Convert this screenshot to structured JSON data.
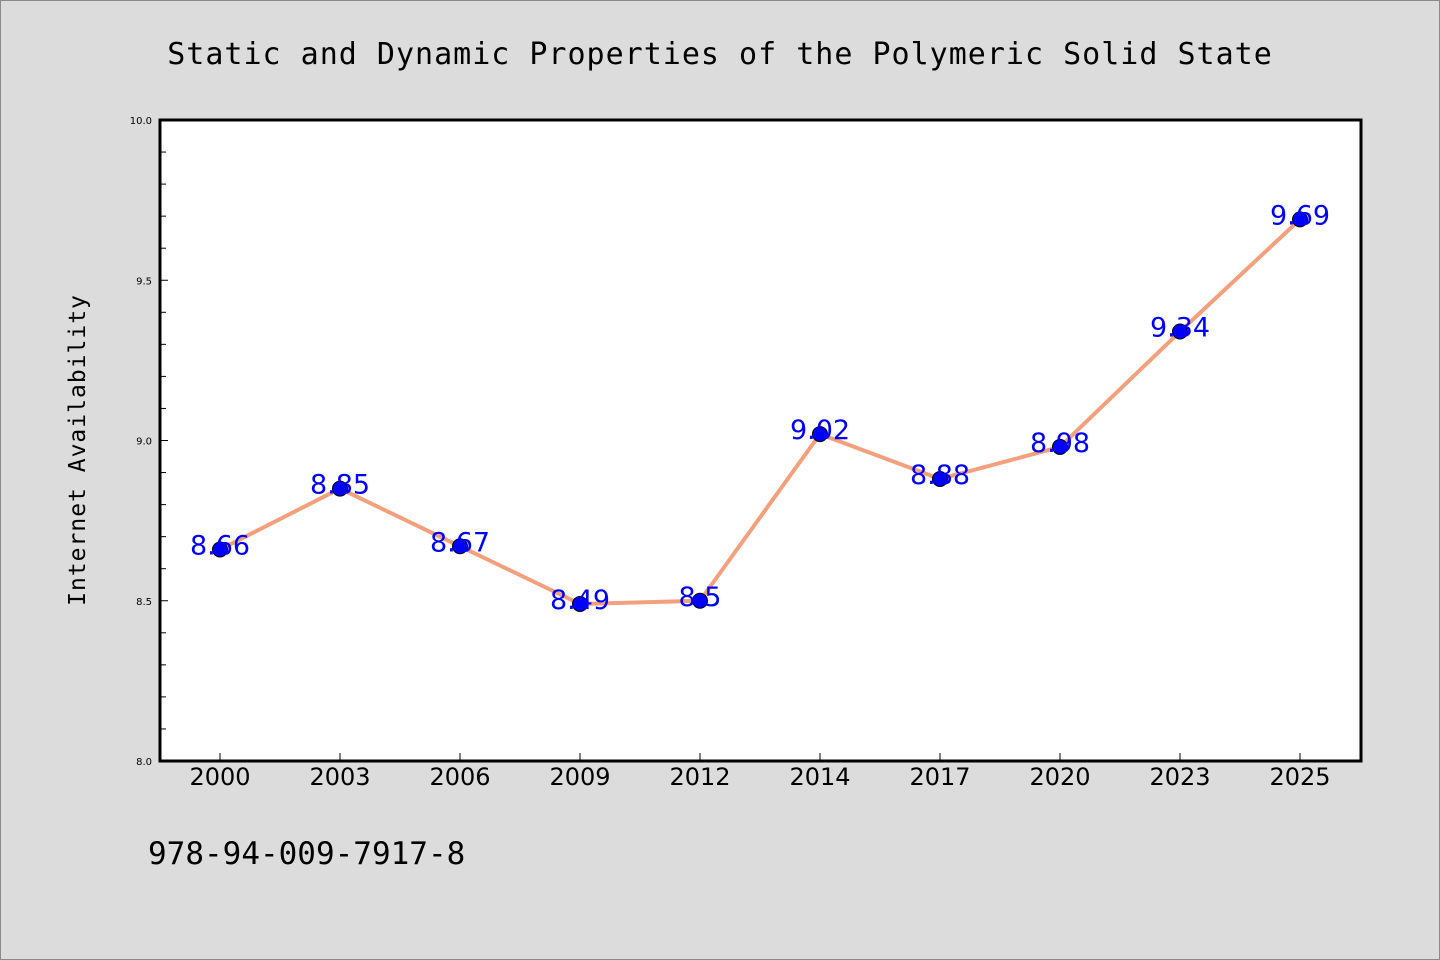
{
  "chart_data": {
    "type": "line",
    "title": "Static and Dynamic Properties of the Polymeric Solid State",
    "xlabel": "",
    "ylabel": "Internet Availability",
    "categories": [
      "2000",
      "2003",
      "2006",
      "2009",
      "2012",
      "2014",
      "2017",
      "2020",
      "2023",
      "2025"
    ],
    "series": [
      {
        "values": [
          8.66,
          8.85,
          8.67,
          8.49,
          8.5,
          9.02,
          8.88,
          8.98,
          9.34,
          9.69
        ]
      }
    ],
    "data_labels": [
      "8.66",
      "8.85",
      "8.67",
      "8.49",
      "8.5",
      "9.02",
      "8.88",
      "8.98",
      "9.34",
      "9.69"
    ],
    "ylim": [
      8.0,
      10.0
    ],
    "yticks": [
      "8.0",
      "8.5",
      "9.0",
      "9.5",
      "10.0"
    ],
    "grid": false,
    "colors": {
      "line": "#f4a07c",
      "marker": "#0000ff",
      "marker_edge": "#000000",
      "data_label": "#0000ff",
      "background": "#dcdcdc",
      "plot_background": "#ffffff"
    }
  },
  "footer": {
    "isbn": "978-94-009-7917-8"
  }
}
